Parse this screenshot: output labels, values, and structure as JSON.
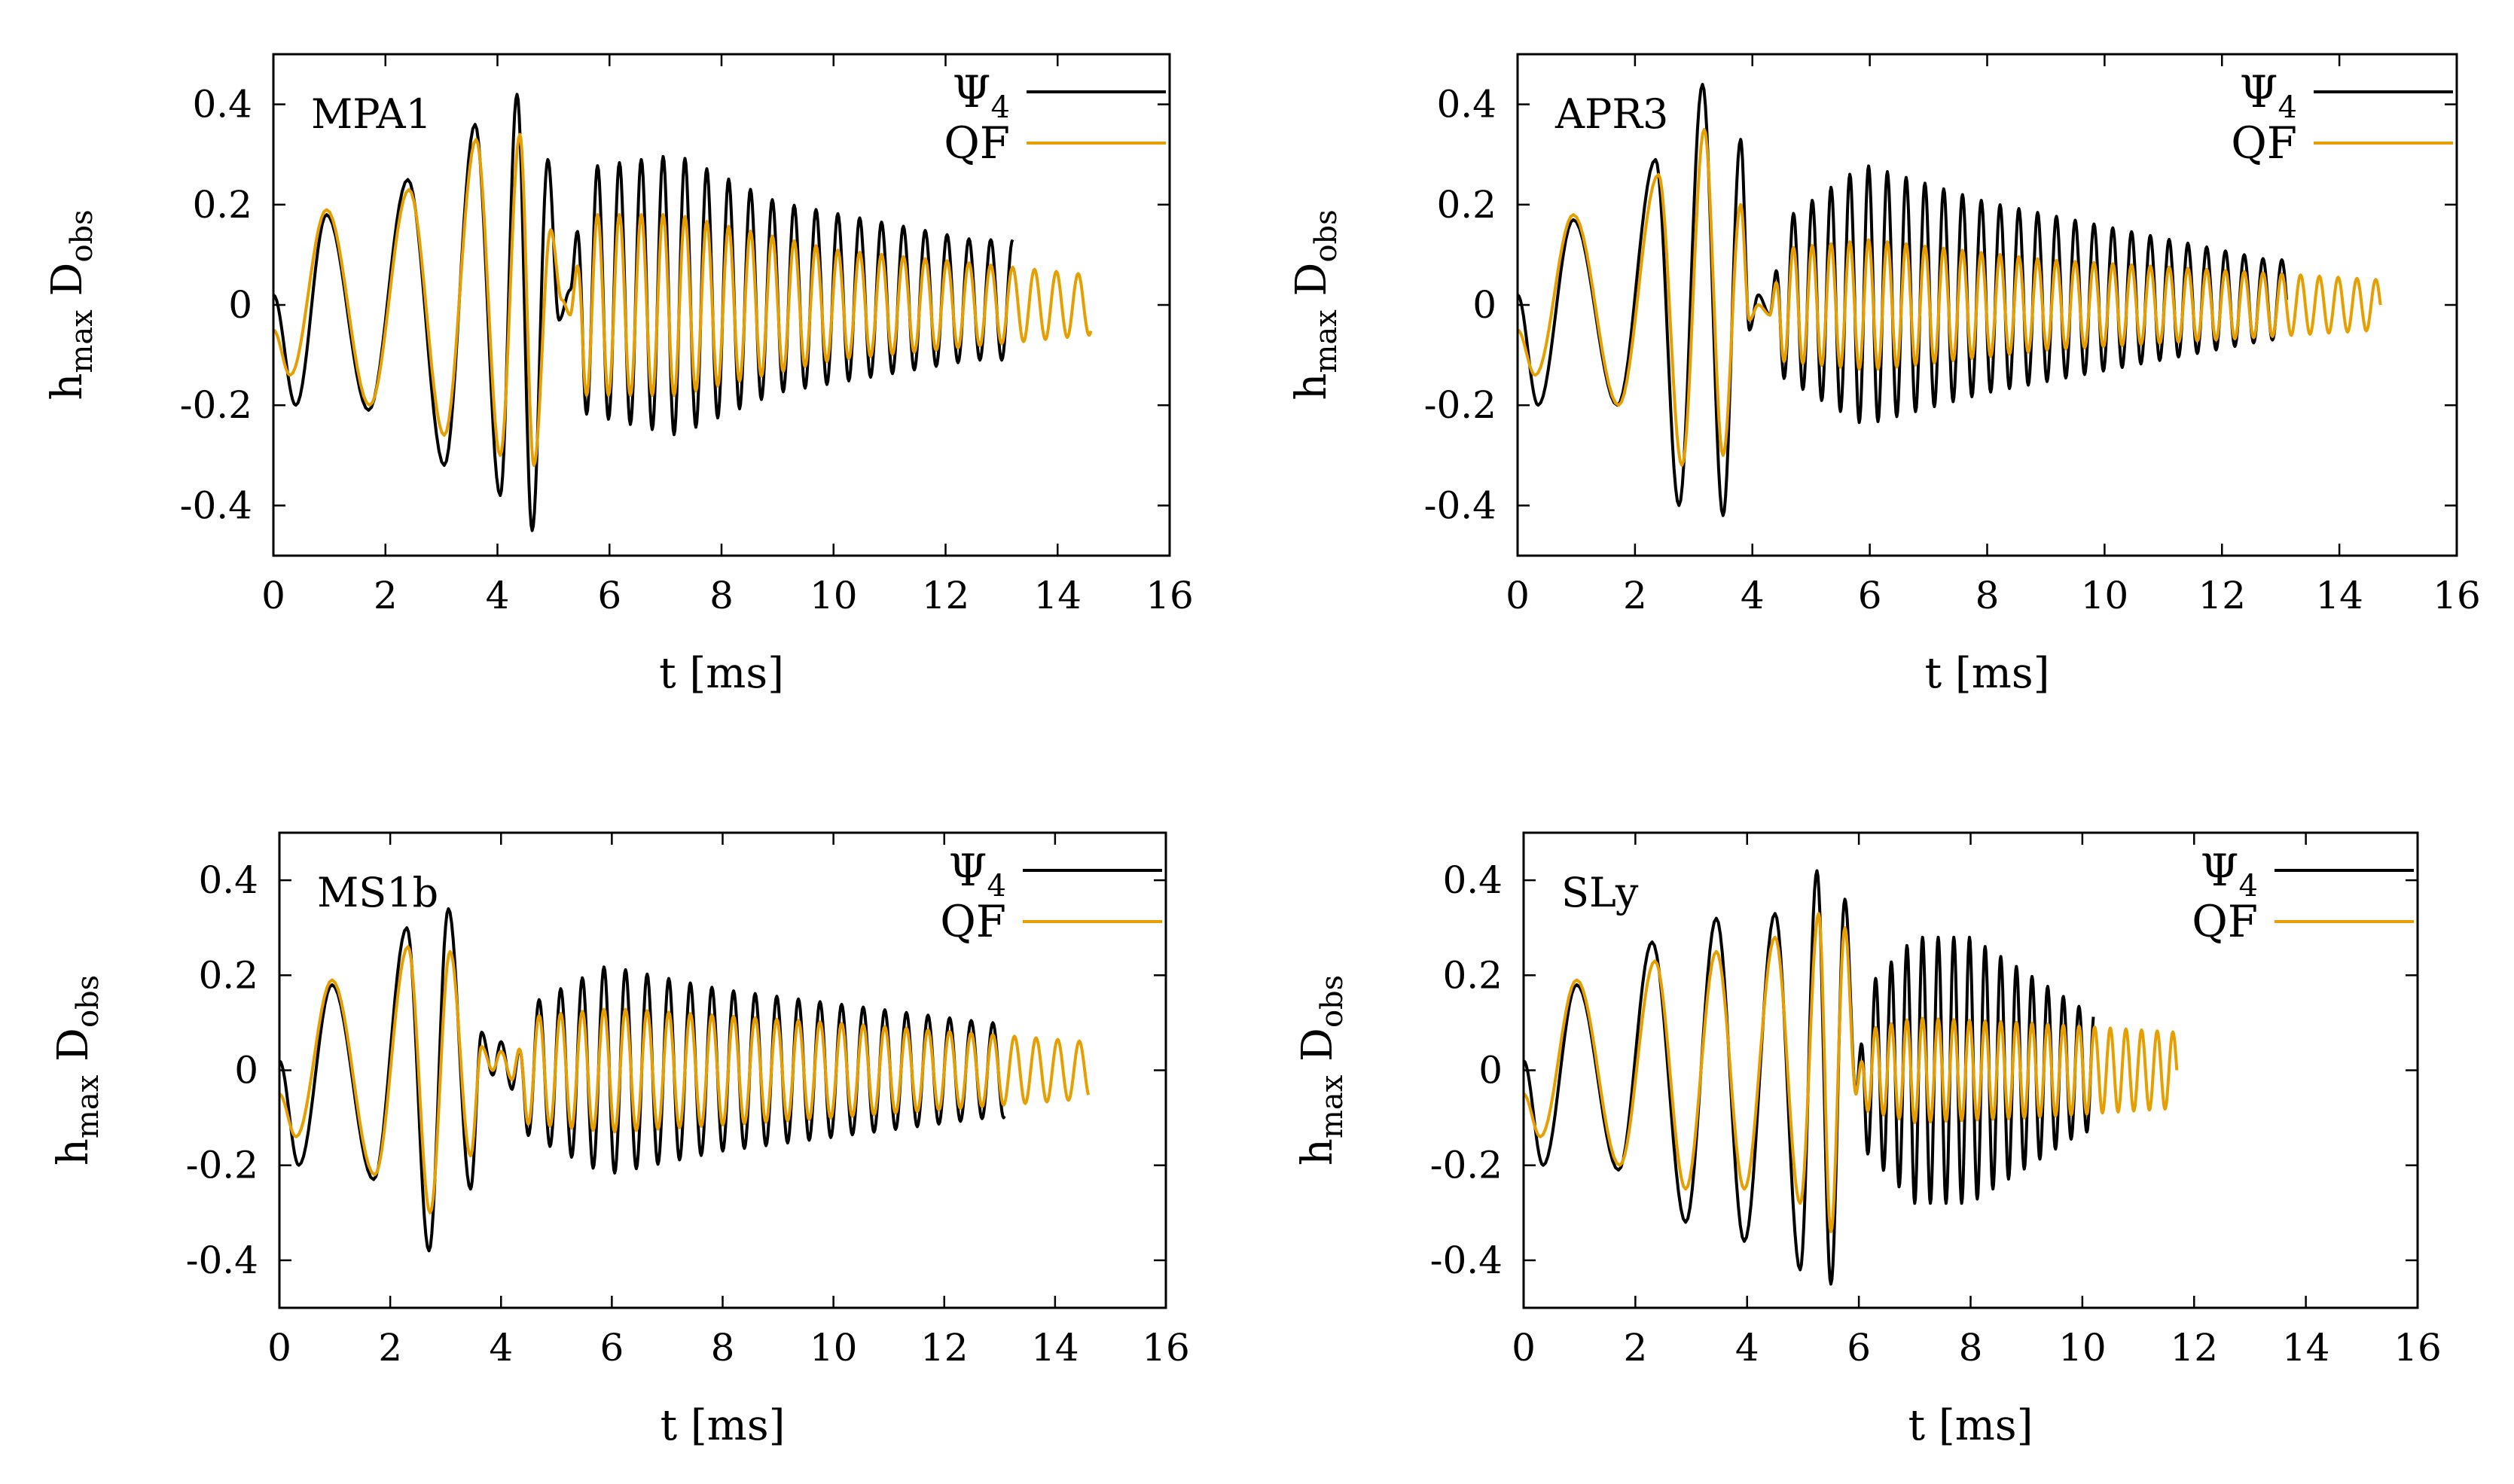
{
  "figure": {
    "colors": {
      "psi4": "#000000",
      "qf": "#e69f00",
      "frame": "#000000"
    },
    "xlabel_main": "t",
    "xlabel_unit": "[ms]",
    "ylabel": {
      "base": "h",
      "base_sub": "max",
      "mid": " D",
      "mid_sub": "obs"
    },
    "legend": {
      "psi4_base": "Ψ",
      "psi4_sub": "4",
      "qf": "QF"
    }
  },
  "chart_data": [
    {
      "type": "line",
      "title": "MPA1",
      "xlabel": "t [ms]",
      "ylabel": "h_max D_obs",
      "xlim": [
        0,
        16
      ],
      "ylim": [
        -0.5,
        0.5
      ],
      "xticks": [
        0,
        2,
        4,
        6,
        8,
        10,
        12,
        14,
        16
      ],
      "yticks": [
        0.4,
        0.2,
        0,
        -0.2,
        -0.4
      ],
      "xtick_labels": [
        "0",
        "2",
        "4",
        "6",
        "8",
        "10",
        "12",
        "14",
        "16"
      ],
      "ytick_labels": [
        "0.4",
        "0.2",
        "0",
        "-0.2",
        "-0.4"
      ],
      "psi4_end": 13.2,
      "qf_end": 14.6,
      "phase1": {
        "t_end": 4.7,
        "psi4_peaks": [
          [
            0.0,
            0.02
          ],
          [
            0.4,
            -0.2
          ],
          [
            0.95,
            0.18
          ],
          [
            1.7,
            -0.21
          ],
          [
            2.4,
            0.25
          ],
          [
            3.05,
            -0.32
          ],
          [
            3.6,
            0.36
          ],
          [
            4.05,
            -0.38
          ],
          [
            4.35,
            0.42
          ],
          [
            4.62,
            -0.45
          ]
        ],
        "qf_peaks": [
          [
            0.0,
            -0.05
          ],
          [
            0.3,
            -0.14
          ],
          [
            0.95,
            0.19
          ],
          [
            1.72,
            -0.2
          ],
          [
            2.42,
            0.23
          ],
          [
            3.05,
            -0.26
          ],
          [
            3.62,
            0.33
          ],
          [
            4.05,
            -0.3
          ],
          [
            4.4,
            0.34
          ],
          [
            4.65,
            -0.32
          ]
        ]
      },
      "transition": {
        "t_end": 5.3,
        "psi4_peaks": [
          [
            4.62,
            -0.45
          ],
          [
            4.9,
            0.29
          ],
          [
            5.1,
            -0.03
          ],
          [
            5.3,
            0.03
          ]
        ],
        "qf_peaks": [
          [
            4.65,
            -0.32
          ],
          [
            4.95,
            0.15
          ],
          [
            5.15,
            0.01
          ],
          [
            5.3,
            -0.02
          ]
        ]
      },
      "ringdown": {
        "period": 0.39,
        "psi4": [
          [
            5.3,
            0.24,
            0.03
          ],
          [
            7.2,
            0.28,
            0.02
          ],
          [
            9.0,
            0.19,
            0.015
          ],
          [
            12.5,
            0.12,
            0.01
          ]
        ],
        "qf": [
          [
            5.3,
            0.18,
            0.0
          ],
          [
            7.2,
            0.18,
            0.0
          ],
          [
            10.0,
            0.11,
            0.0
          ],
          [
            14.6,
            0.06,
            0.0
          ]
        ]
      }
    },
    {
      "type": "line",
      "title": "APR3",
      "xlabel": "t [ms]",
      "ylabel": "h_max D_obs",
      "xlim": [
        0,
        16
      ],
      "ylim": [
        -0.5,
        0.5
      ],
      "xticks": [
        0,
        2,
        4,
        6,
        8,
        10,
        12,
        14,
        16
      ],
      "yticks": [
        0.4,
        0.2,
        0,
        -0.2,
        -0.4
      ],
      "xtick_labels": [
        "0",
        "2",
        "4",
        "6",
        "8",
        "10",
        "12",
        "14",
        "16"
      ],
      "ytick_labels": [
        "0.4",
        "0.2",
        "0",
        "-0.2",
        "-0.4"
      ],
      "psi4_end": 13.1,
      "qf_end": 14.7,
      "phase1": {
        "t_end": 3.8,
        "psi4_peaks": [
          [
            0.0,
            0.02
          ],
          [
            0.35,
            -0.2
          ],
          [
            0.95,
            0.17
          ],
          [
            1.7,
            -0.2
          ],
          [
            2.35,
            0.29
          ],
          [
            2.75,
            -0.4
          ],
          [
            3.15,
            0.44
          ],
          [
            3.5,
            -0.42
          ],
          [
            3.8,
            0.33
          ]
        ],
        "qf_peaks": [
          [
            0.0,
            -0.05
          ],
          [
            0.3,
            -0.14
          ],
          [
            0.95,
            0.18
          ],
          [
            1.72,
            -0.2
          ],
          [
            2.4,
            0.26
          ],
          [
            2.8,
            -0.32
          ],
          [
            3.18,
            0.35
          ],
          [
            3.5,
            -0.3
          ],
          [
            3.8,
            0.2
          ]
        ]
      },
      "transition": {
        "t_end": 4.3,
        "psi4_peaks": [
          [
            3.8,
            0.33
          ],
          [
            3.95,
            -0.05
          ],
          [
            4.1,
            0.02
          ],
          [
            4.3,
            -0.02
          ]
        ],
        "qf_peaks": [
          [
            3.8,
            0.2
          ],
          [
            3.95,
            -0.03
          ],
          [
            4.1,
            0.0
          ],
          [
            4.3,
            -0.02
          ]
        ]
      },
      "ringdown": {
        "period": 0.32,
        "psi4": [
          [
            4.3,
            0.14,
            0.01
          ],
          [
            5.9,
            0.26,
            0.02
          ],
          [
            8.0,
            0.19,
            0.015
          ],
          [
            12.8,
            0.08,
            0.01
          ]
        ],
        "qf": [
          [
            4.3,
            0.11,
            0.0
          ],
          [
            6.0,
            0.13,
            0.0
          ],
          [
            9.0,
            0.09,
            0.0
          ],
          [
            14.7,
            0.05,
            0.0
          ]
        ]
      }
    },
    {
      "type": "line",
      "title": "MS1b",
      "xlabel": "t [ms]",
      "ylabel": "h_max D_obs",
      "xlim": [
        0,
        16
      ],
      "ylim": [
        -0.5,
        0.5
      ],
      "xticks": [
        0,
        2,
        4,
        6,
        8,
        10,
        12,
        14,
        16
      ],
      "yticks": [
        0.4,
        0.2,
        0,
        -0.2,
        -0.4
      ],
      "xtick_labels": [
        "0",
        "2",
        "4",
        "6",
        "8",
        "10",
        "12",
        "14",
        "16"
      ],
      "ytick_labels": [
        "0.4",
        "0.2",
        "0",
        "-0.2",
        "-0.4"
      ],
      "psi4_end": 13.1,
      "qf_end": 14.6,
      "phase1": {
        "t_end": 3.45,
        "psi4_peaks": [
          [
            0.0,
            0.02
          ],
          [
            0.35,
            -0.2
          ],
          [
            0.95,
            0.18
          ],
          [
            1.7,
            -0.23
          ],
          [
            2.3,
            0.3
          ],
          [
            2.7,
            -0.38
          ],
          [
            3.05,
            0.34
          ],
          [
            3.45,
            -0.25
          ]
        ],
        "qf_peaks": [
          [
            0.0,
            -0.05
          ],
          [
            0.3,
            -0.14
          ],
          [
            0.95,
            0.19
          ],
          [
            1.72,
            -0.22
          ],
          [
            2.32,
            0.26
          ],
          [
            2.72,
            -0.3
          ],
          [
            3.08,
            0.25
          ],
          [
            3.45,
            -0.18
          ]
        ]
      },
      "transition": {
        "t_end": 4.2,
        "psi4_peaks": [
          [
            3.45,
            -0.25
          ],
          [
            3.65,
            0.08
          ],
          [
            3.85,
            -0.01
          ],
          [
            4.0,
            0.06
          ],
          [
            4.2,
            -0.04
          ]
        ],
        "qf_peaks": [
          [
            3.45,
            -0.18
          ],
          [
            3.65,
            0.05
          ],
          [
            3.85,
            0.0
          ],
          [
            4.0,
            0.04
          ],
          [
            4.2,
            -0.02
          ]
        ]
      },
      "ringdown": {
        "period": 0.39,
        "psi4": [
          [
            4.2,
            0.12,
            0.0
          ],
          [
            5.9,
            0.22,
            0.0
          ],
          [
            8.0,
            0.17,
            0.0
          ],
          [
            12.8,
            0.1,
            0.0
          ]
        ],
        "qf": [
          [
            4.2,
            0.11,
            0.0
          ],
          [
            6.0,
            0.13,
            0.0
          ],
          [
            10.0,
            0.1,
            0.0
          ],
          [
            14.6,
            0.06,
            0.0
          ]
        ]
      }
    },
    {
      "type": "line",
      "title": "SLy",
      "xlabel": "t [ms]",
      "ylabel": "h_max D_obs",
      "xlim": [
        0,
        16
      ],
      "ylim": [
        -0.5,
        0.5
      ],
      "xticks": [
        0,
        2,
        4,
        6,
        8,
        10,
        12,
        14,
        16
      ],
      "yticks": [
        0.4,
        0.2,
        0,
        -0.2,
        -0.4
      ],
      "xtick_labels": [
        "0",
        "2",
        "4",
        "6",
        "8",
        "10",
        "12",
        "14",
        "16"
      ],
      "ytick_labels": [
        "0.4",
        "0.2",
        "0",
        "-0.2",
        "-0.4"
      ],
      "psi4_end": 10.2,
      "qf_end": 11.7,
      "phase1": {
        "t_end": 5.5,
        "psi4_peaks": [
          [
            0.0,
            0.02
          ],
          [
            0.35,
            -0.2
          ],
          [
            0.95,
            0.18
          ],
          [
            1.7,
            -0.21
          ],
          [
            2.3,
            0.27
          ],
          [
            2.9,
            -0.32
          ],
          [
            3.45,
            0.32
          ],
          [
            3.95,
            -0.36
          ],
          [
            4.5,
            0.33
          ],
          [
            4.95,
            -0.42
          ],
          [
            5.25,
            0.42
          ],
          [
            5.5,
            -0.45
          ]
        ],
        "qf_peaks": [
          [
            0.0,
            -0.05
          ],
          [
            0.3,
            -0.14
          ],
          [
            0.95,
            0.19
          ],
          [
            1.72,
            -0.2
          ],
          [
            2.35,
            0.23
          ],
          [
            2.9,
            -0.25
          ],
          [
            3.45,
            0.25
          ],
          [
            3.95,
            -0.25
          ],
          [
            4.5,
            0.28
          ],
          [
            4.95,
            -0.28
          ],
          [
            5.28,
            0.33
          ],
          [
            5.5,
            -0.34
          ]
        ]
      },
      "transition": {
        "t_end": 5.95,
        "psi4_peaks": [
          [
            5.5,
            -0.45
          ],
          [
            5.75,
            0.36
          ],
          [
            5.95,
            -0.05
          ]
        ],
        "qf_peaks": [
          [
            5.5,
            -0.34
          ],
          [
            5.75,
            0.3
          ],
          [
            5.95,
            -0.05
          ]
        ]
      },
      "ringdown": {
        "period": 0.28,
        "psi4": [
          [
            5.95,
            0.15,
            0.0
          ],
          [
            7.0,
            0.28,
            0.0
          ],
          [
            8.0,
            0.28,
            0.0
          ],
          [
            10.0,
            0.13,
            0.0
          ]
        ],
        "qf": [
          [
            5.95,
            0.08,
            0.0
          ],
          [
            7.0,
            0.11,
            0.0
          ],
          [
            9.0,
            0.1,
            0.0
          ],
          [
            11.7,
            0.08,
            0.0
          ]
        ]
      }
    }
  ]
}
